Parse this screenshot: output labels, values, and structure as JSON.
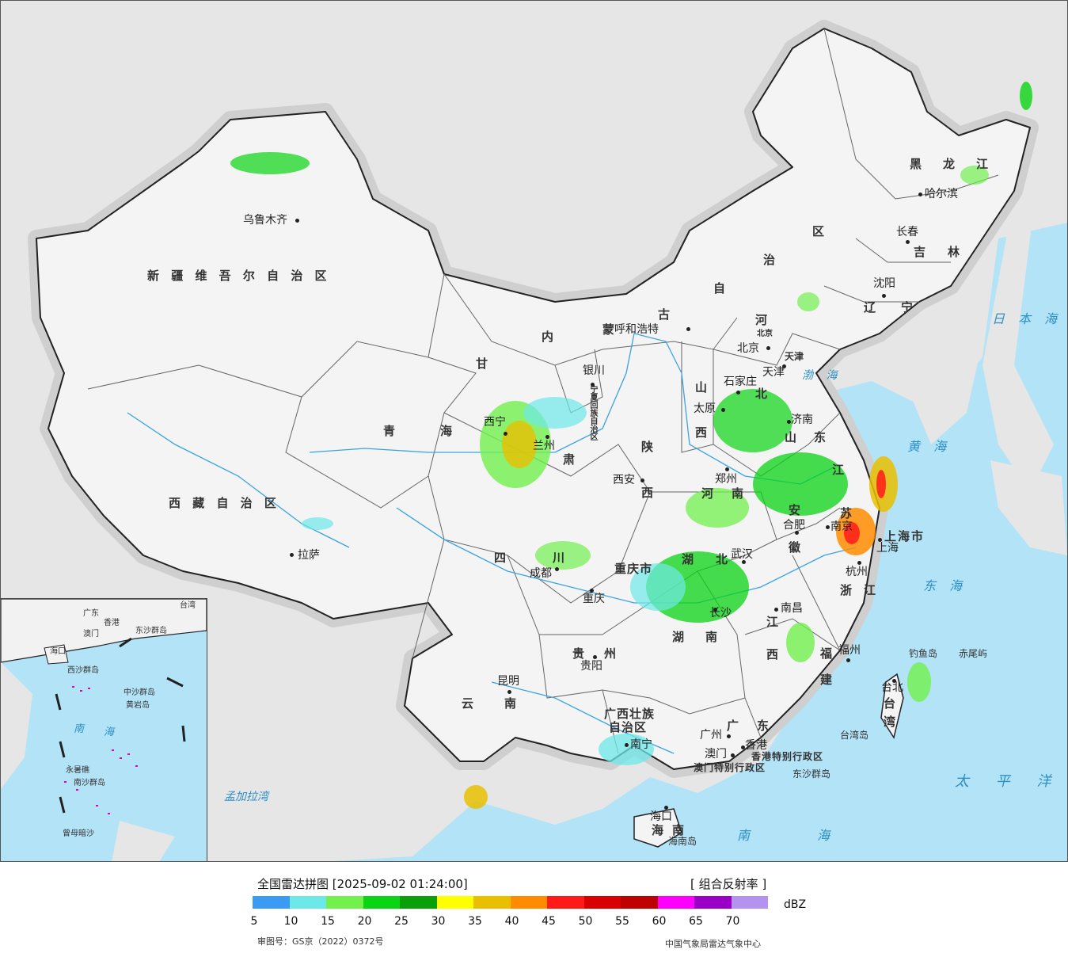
{
  "legend": {
    "title": "全国雷达拼图 [2025-09-02 01:24:00]",
    "product": "[ 组合反射率 ]",
    "unit": "dBZ",
    "ticks": [
      "5",
      "10",
      "15",
      "20",
      "25",
      "30",
      "35",
      "40",
      "45",
      "50",
      "55",
      "60",
      "65",
      "70"
    ],
    "colors": [
      "#3b9bf3",
      "#6de8e8",
      "#71f04e",
      "#0ad414",
      "#0aa00a",
      "#ffff00",
      "#e8c000",
      "#ff8c00",
      "#ff1a1a",
      "#d80000",
      "#bf0000",
      "#ff00ff",
      "#9a00c6",
      "#b392f0"
    ],
    "approval": "审图号：GS京（2022）0372号",
    "publisher": "中国气象局雷达气象中心"
  },
  "map": {
    "provinces": [
      "新 疆 维 吾 尔 自 治 区",
      "西 藏 自 治 区",
      "青",
      "海",
      "甘",
      "肃",
      "内",
      "蒙",
      "古",
      "自",
      "治",
      "区",
      "黑",
      "龙",
      "江",
      "吉",
      "林",
      "辽",
      "宁",
      "河",
      "北",
      "山",
      "西",
      "陕",
      "西",
      "山",
      "东",
      "河",
      "南",
      "四",
      "川",
      "湖",
      "北",
      "湖",
      "南",
      "江",
      "西",
      "贵",
      "州",
      "云",
      "南",
      "广",
      "东",
      "安",
      "徽",
      "江",
      "苏",
      "浙",
      "江",
      "福",
      "建",
      "台",
      "湾",
      "海",
      "南",
      "上海市",
      "重庆市",
      "广西壮族",
      "自治区",
      "香港特别行政区",
      "澳门特别行政区",
      "宁夏回族自治区",
      "天津",
      "北京"
    ],
    "cities": [
      "乌鲁木齐",
      "拉萨",
      "西宁",
      "兰州",
      "银川",
      "呼和浩特",
      "西安",
      "成都",
      "重庆",
      "昆明",
      "贵阳",
      "南宁",
      "广州",
      "澳门",
      "香港",
      "海口",
      "长沙",
      "武汉",
      "南昌",
      "福州",
      "台北",
      "杭州",
      "上海",
      "南京",
      "合肥",
      "郑州",
      "济南",
      "太原",
      "石家庄",
      "天津",
      "北京",
      "沈阳",
      "长春",
      "哈尔滨"
    ],
    "seas": [
      "日 本 海",
      "渤 海",
      "黄 海",
      "东 海",
      "太 平 洋",
      "南 海",
      "台湾岛",
      "海南岛"
    ],
    "foreign": [
      "孟加拉湾"
    ],
    "islands": [
      "钓鱼岛",
      "赤尾屿",
      "东沙群岛"
    ]
  },
  "inset": {
    "labels": [
      "南",
      "海",
      "海口",
      "西沙群岛",
      "中沙群岛",
      "黄岩岛",
      "永暑礁",
      "南沙群岛",
      "曾母暗沙",
      "广东",
      "香港",
      "澳门",
      "台湾",
      "东沙群岛"
    ]
  }
}
